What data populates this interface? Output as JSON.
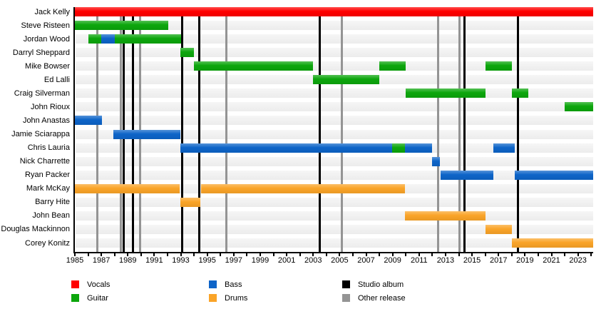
{
  "chart_data": {
    "type": "timeline",
    "description": "Band members timeline (gantt-style) with instrument bars and release lines",
    "x_axis": {
      "start": 1985,
      "end": 2024.15,
      "year_labels": [
        1985,
        1987,
        1989,
        1991,
        1993,
        1995,
        1997,
        1999,
        2001,
        2003,
        2005,
        2007,
        2009,
        2011,
        2013,
        2015,
        2017,
        2019,
        2021,
        2023
      ],
      "minor_tick_every": 1,
      "grid": false
    },
    "legend": [
      {
        "label": "Vocals",
        "color": "#FF0000"
      },
      {
        "label": "Guitar",
        "color": "#0CA60C"
      },
      {
        "label": "Bass",
        "color": "#0D64C8"
      },
      {
        "label": "Drums",
        "color": "#FAA428"
      },
      {
        "label": "Studio album",
        "color": "#000000"
      },
      {
        "label": "Other release",
        "color": "#949494"
      }
    ],
    "legend_position": "bottom",
    "members": [
      {
        "name": "Jack Kelly",
        "segments": [
          {
            "role": "Vocals",
            "start": 1985,
            "end": 2024.15
          }
        ]
      },
      {
        "name": "Steve Risteen",
        "segments": [
          {
            "role": "Guitar",
            "start": 1985,
            "end": 1992.05
          }
        ]
      },
      {
        "name": "Jordan Wood",
        "segments": [
          {
            "role": "Guitar",
            "start": 1986,
            "end": 1987
          },
          {
            "role": "Bass",
            "start": 1987,
            "end": 1988
          },
          {
            "role": "Guitar",
            "start": 1988,
            "end": 1993
          }
        ]
      },
      {
        "name": "Darryl Sheppard",
        "segments": [
          {
            "role": "Guitar",
            "start": 1992.95,
            "end": 1994
          }
        ]
      },
      {
        "name": "Mike Bowser",
        "segments": [
          {
            "role": "Guitar",
            "start": 1994,
            "end": 2003
          },
          {
            "role": "Guitar",
            "start": 2008,
            "end": 2010
          },
          {
            "role": "Guitar",
            "start": 2016,
            "end": 2018
          }
        ]
      },
      {
        "name": "Ed Lalli",
        "segments": [
          {
            "role": "Guitar",
            "start": 2003,
            "end": 2008
          }
        ]
      },
      {
        "name": "Craig Silverman",
        "segments": [
          {
            "role": "Guitar",
            "start": 2010,
            "end": 2016
          },
          {
            "role": "Guitar",
            "start": 2018,
            "end": 2019.25
          }
        ]
      },
      {
        "name": "John Rioux",
        "segments": [
          {
            "role": "Guitar",
            "start": 2022,
            "end": 2024.15
          }
        ]
      },
      {
        "name": "John Anastas",
        "segments": [
          {
            "role": "Bass",
            "start": 1985,
            "end": 1987.05
          }
        ]
      },
      {
        "name": "Jamie Sciarappa",
        "segments": [
          {
            "role": "Bass",
            "start": 1987.9,
            "end": 1992.95
          }
        ]
      },
      {
        "name": "Chris Lauria",
        "segments": [
          {
            "role": "Bass",
            "start": 1992.95,
            "end": 2008.95
          },
          {
            "role": "Guitar",
            "start": 2008.95,
            "end": 2009.95
          },
          {
            "role": "Bass",
            "start": 2009.95,
            "end": 2012
          },
          {
            "role": "Bass",
            "start": 2016.6,
            "end": 2018.25
          }
        ]
      },
      {
        "name": "Nick Charrette",
        "segments": [
          {
            "role": "Bass",
            "start": 2012,
            "end": 2012.55
          }
        ]
      },
      {
        "name": "Ryan Packer",
        "segments": [
          {
            "role": "Bass",
            "start": 2012.6,
            "end": 2016.6
          },
          {
            "role": "Bass",
            "start": 2018.25,
            "end": 2024.15
          }
        ]
      },
      {
        "name": "Mark McKay",
        "segments": [
          {
            "role": "Drums",
            "start": 1985,
            "end": 1992.9
          },
          {
            "role": "Drums",
            "start": 1994.55,
            "end": 2009.95
          }
        ]
      },
      {
        "name": "Barry Hite",
        "segments": [
          {
            "role": "Drums",
            "start": 1992.95,
            "end": 1994.5
          }
        ]
      },
      {
        "name": "John Bean",
        "segments": [
          {
            "role": "Drums",
            "start": 2009.95,
            "end": 2016
          }
        ]
      },
      {
        "name": "Douglas Mackinnon",
        "segments": [
          {
            "role": "Drums",
            "start": 2016,
            "end": 2018
          }
        ]
      },
      {
        "name": "Corey Konitz",
        "segments": [
          {
            "role": "Drums",
            "start": 2018,
            "end": 2024.15
          }
        ]
      }
    ],
    "events": {
      "studio_albums": [
        1988.7,
        1989.4,
        1993.1,
        1994.4,
        2003.5,
        2014.45,
        2018.45
      ],
      "other_releases": [
        1986.7,
        1988.45,
        1989.95,
        1996.45,
        2005.15,
        2012.45,
        2014.05
      ]
    },
    "colors": {
      "vocals": "#FF0000",
      "guitar": "#0CA60C",
      "bass": "#0D64C8",
      "drums": "#FAA428",
      "studio_album_line": "#000000",
      "other_release_line": "#949494",
      "row_band_top": "#F6F6F6",
      "row_band_bottom": "#ECECEC",
      "axis": "#000000"
    }
  }
}
